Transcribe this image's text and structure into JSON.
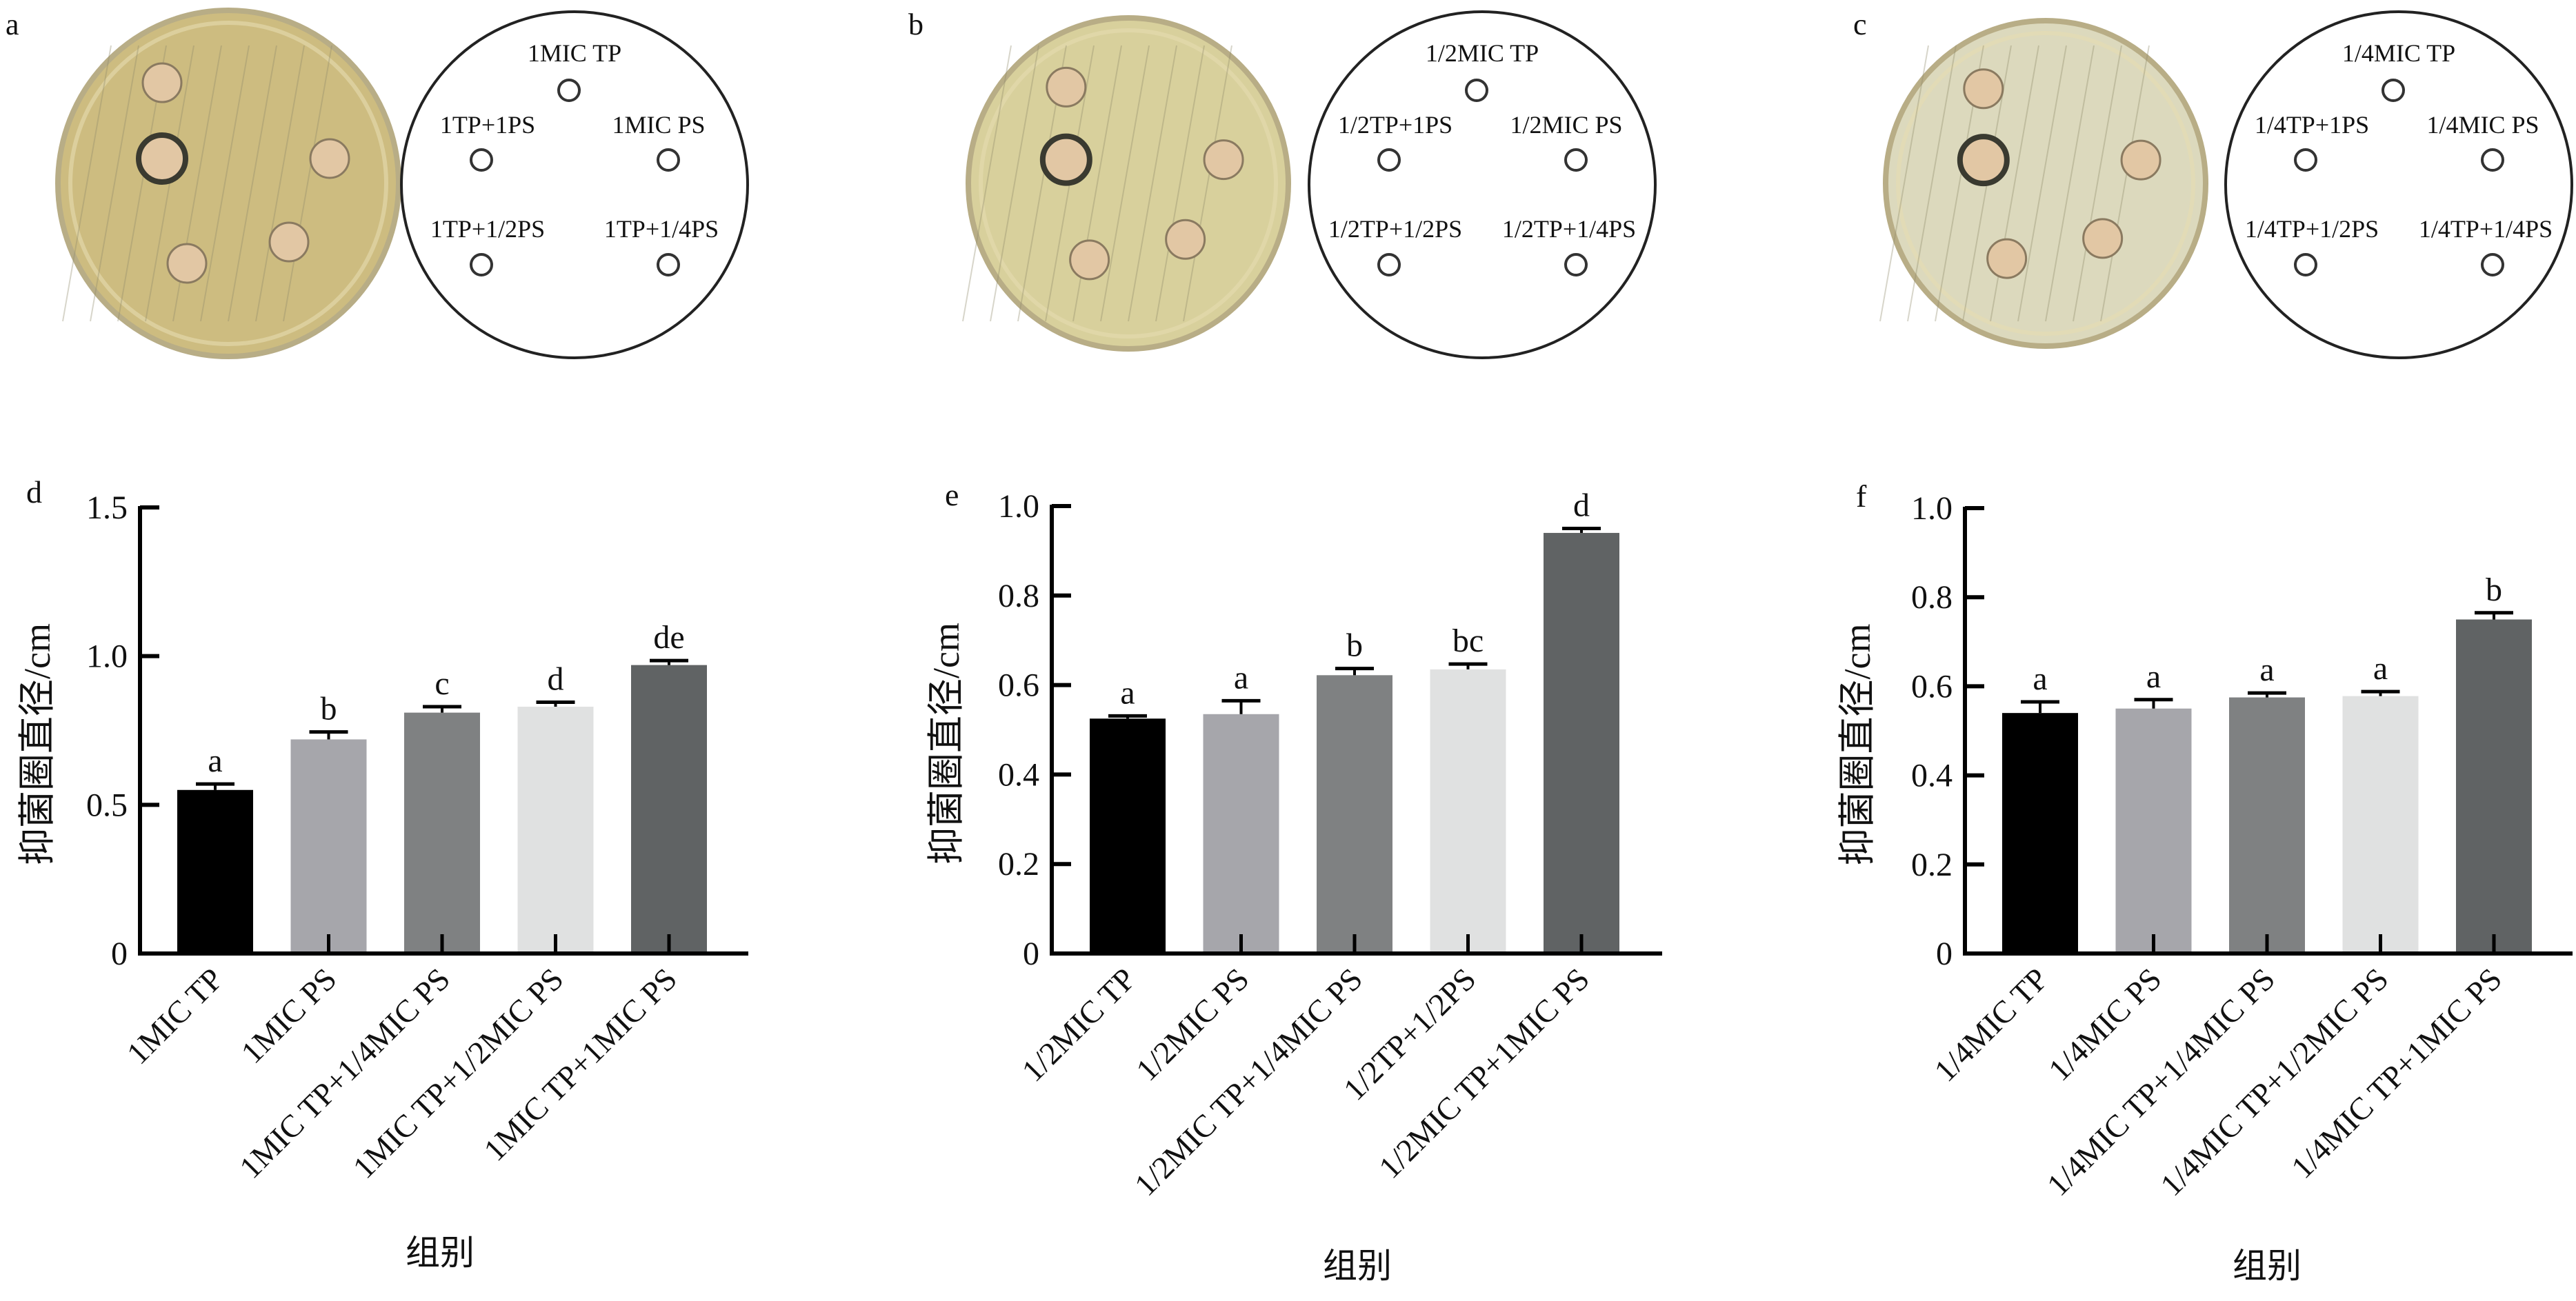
{
  "top_panels": [
    {
      "letter": "a",
      "dish_color": "#cdbc80",
      "labels": [
        "1MIC TP",
        "1TP+1PS",
        "1MIC PS",
        "1TP+1/2PS",
        "1TP+1/4PS"
      ]
    },
    {
      "letter": "b",
      "dish_color": "#d8d09c",
      "labels": [
        "1/2MIC TP",
        "1/2TP+1PS",
        "1/2MIC PS",
        "1/2TP+1/2PS",
        "1/2TP+1/4PS"
      ]
    },
    {
      "letter": "c",
      "dish_color": "#dcd9bd",
      "labels": [
        "1/4MIC TP",
        "1/4TP+1PS",
        "1/4MIC PS",
        "1/4TP+1/2PS",
        "1/4TP+1/4PS"
      ]
    }
  ],
  "bar_colors": [
    "#000000",
    "#a6a6ab",
    "#7f8182",
    "#e0e1e1",
    "#606364"
  ],
  "chart_data": [
    {
      "type": "bar",
      "panel": "d",
      "xlabel": "组别",
      "ylabel": "抑菌圈直径/cm",
      "ylim": [
        0,
        1.5
      ],
      "yticks": [
        0,
        0.5,
        1.0,
        1.5
      ],
      "ytick_labels": [
        "0",
        "0.5",
        "1.0",
        "1.5"
      ],
      "categories": [
        "1MIC TP",
        "1MIC PS",
        "1MIC TP+1/4MIC PS",
        "1MIC TP+1/2MIC PS",
        "1MIC TP+1MIC PS"
      ],
      "values": [
        0.55,
        0.72,
        0.81,
        0.83,
        0.97
      ],
      "errors": [
        0.02,
        0.025,
        0.02,
        0.015,
        0.015
      ],
      "significance": [
        "a",
        "b",
        "c",
        "d",
        "de"
      ]
    },
    {
      "type": "bar",
      "panel": "e",
      "xlabel": "组别",
      "ylabel": "抑菌圈直径/cm",
      "ylim": [
        0,
        1.0
      ],
      "yticks": [
        0,
        0.2,
        0.4,
        0.6,
        0.8,
        1.0
      ],
      "ytick_labels": [
        "0",
        "0.2",
        "0.4",
        "0.6",
        "0.8",
        "1.0"
      ],
      "categories": [
        "1/2MIC TP",
        "1/2MIC PS",
        "1/2MIC TP+1/4MIC PS",
        "1/2TP+1/2PS",
        "1/2MIC TP+1MIC PS"
      ],
      "values": [
        0.525,
        0.535,
        0.622,
        0.635,
        0.94
      ],
      "errors": [
        0.006,
        0.03,
        0.015,
        0.012,
        0.01
      ],
      "significance": [
        "a",
        "a",
        "b",
        "bc",
        "d"
      ]
    },
    {
      "type": "bar",
      "panel": "f",
      "xlabel": "组别",
      "ylabel": "抑菌圈直径/cm",
      "ylim": [
        0,
        1.0
      ],
      "yticks": [
        0,
        0.2,
        0.4,
        0.6,
        0.8,
        1.0
      ],
      "ytick_labels": [
        "0",
        "0.2",
        "0.4",
        "0.6",
        "0.8",
        "1.0"
      ],
      "categories": [
        "1/4MIC TP",
        "1/4MIC PS",
        "1/4MIC TP+1/4MIC PS",
        "1/4MIC TP+1/2MIC PS",
        "1/4MIC TP+1MIC PS"
      ],
      "values": [
        0.54,
        0.55,
        0.575,
        0.578,
        0.75
      ],
      "errors": [
        0.025,
        0.02,
        0.01,
        0.01,
        0.015
      ],
      "significance": [
        "a",
        "a",
        "a",
        "a",
        "b"
      ]
    }
  ]
}
